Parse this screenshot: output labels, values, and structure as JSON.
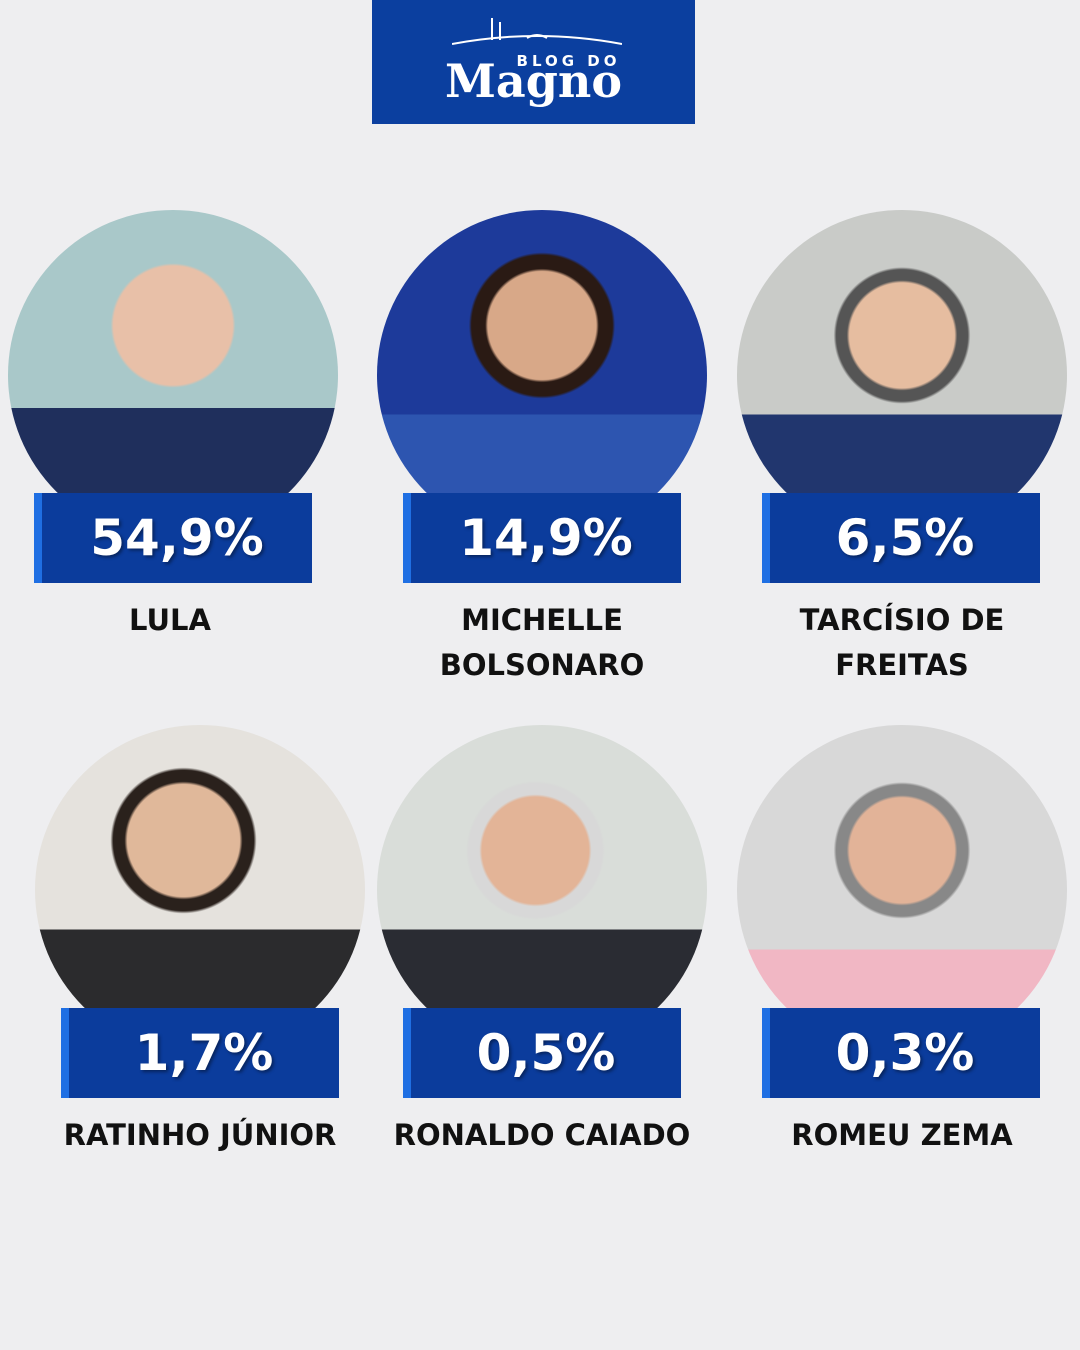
{
  "header": {
    "line1": "BLOG DO",
    "line2": "Magno"
  },
  "candidates": [
    {
      "name": "LULA",
      "percent": "54,9%"
    },
    {
      "name": "MICHELLE BOLSONARO",
      "percent": "14,9%"
    },
    {
      "name": "TARCÍSIO DE FREITAS",
      "percent": "6,5%"
    },
    {
      "name": "RATINHO JÚNIOR",
      "percent": "1,7%"
    },
    {
      "name": "RONALDO CAIADO",
      "percent": "0,5%"
    },
    {
      "name": "ROMEU ZEMA",
      "percent": "0,3%"
    }
  ]
}
